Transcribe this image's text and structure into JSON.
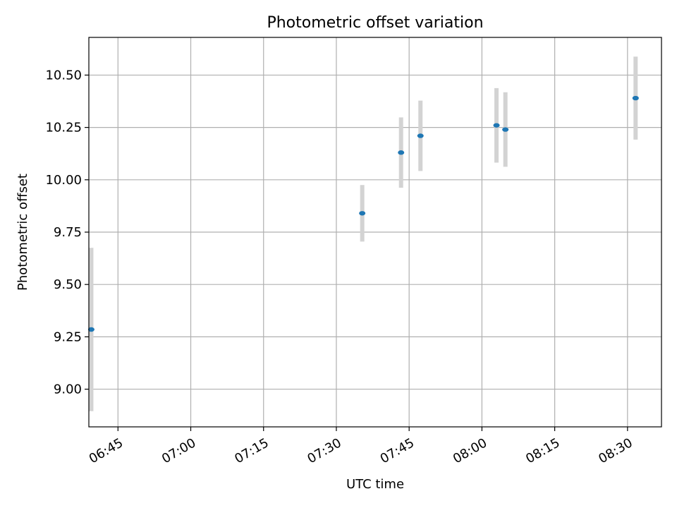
{
  "chart_data": {
    "type": "scatter",
    "title": "Photometric offset variation",
    "xlabel": "UTC time",
    "ylabel": "Photometric offset",
    "x_unit": "UTC time of day (HH:MM)",
    "xlim": [
      "06:39",
      "08:37"
    ],
    "ylim": [
      8.82,
      10.68
    ],
    "x_ticks": [
      "06:45",
      "07:00",
      "07:15",
      "07:30",
      "07:45",
      "08:00",
      "08:15",
      "08:30"
    ],
    "y_ticks": [
      9.0,
      9.25,
      9.5,
      9.75,
      10.0,
      10.25,
      10.5
    ],
    "y_tick_labels": [
      "9.00",
      "9.25",
      "9.50",
      "9.75",
      "10.00",
      "10.25",
      "10.50"
    ],
    "grid": true,
    "series": [
      {
        "points": [
          {
            "x": "06:39:30",
            "y": 9.285,
            "err": 0.39
          },
          {
            "x": "07:35:20",
            "y": 9.84,
            "err": 0.135
          },
          {
            "x": "07:43:20",
            "y": 10.13,
            "err": 0.168
          },
          {
            "x": "07:47:20",
            "y": 10.21,
            "err": 0.168
          },
          {
            "x": "08:03:00",
            "y": 10.26,
            "err": 0.178
          },
          {
            "x": "08:04:50",
            "y": 10.24,
            "err": 0.178
          },
          {
            "x": "08:31:40",
            "y": 10.39,
            "err": 0.198
          }
        ]
      }
    ],
    "colors": {
      "point": "#1f77b4",
      "errorbar": "#d3d3d3",
      "grid": "#b0b0b0",
      "axes": "#000000"
    }
  }
}
